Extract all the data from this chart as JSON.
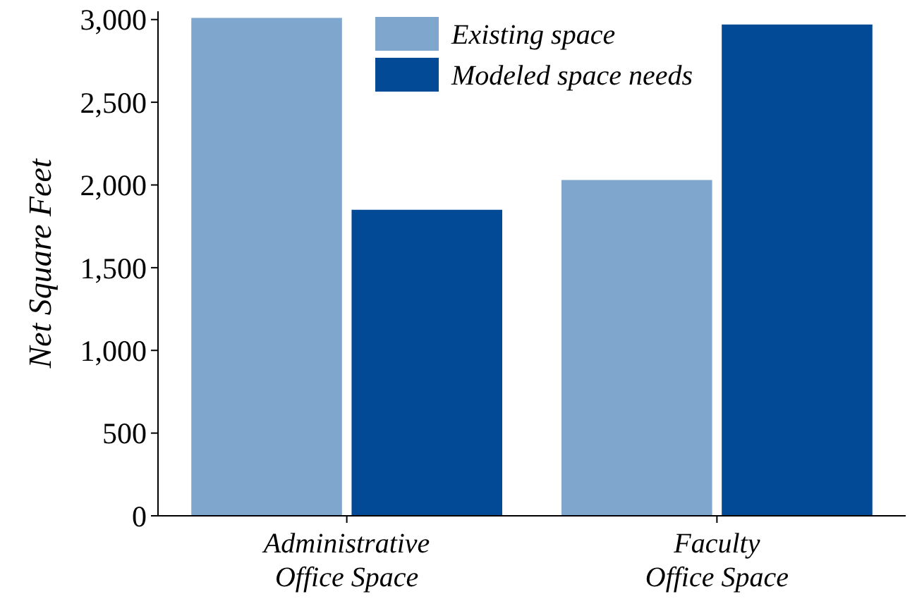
{
  "chart_data": {
    "type": "bar",
    "ylabel": "Net Square Feet",
    "categories": [
      "Administrative\nOffice Space",
      "Faculty\nOffice Space"
    ],
    "series": [
      {
        "name": "Existing space",
        "color": "#7fa6cc",
        "values": [
          3010,
          2030
        ]
      },
      {
        "name": "Modeled space needs",
        "color": "#024a96",
        "values": [
          1850,
          2970
        ]
      }
    ],
    "ylim": [
      0,
      3050
    ],
    "yticks": [
      {
        "value": 0,
        "label": "0"
      },
      {
        "value": 500,
        "label": "500"
      },
      {
        "value": 1000,
        "label": "1,000"
      },
      {
        "value": 1500,
        "label": "1,500"
      },
      {
        "value": 2000,
        "label": "2,000"
      },
      {
        "value": 2500,
        "label": "2,500"
      },
      {
        "value": 3000,
        "label": "3,000"
      }
    ],
    "grid": false,
    "legend": "top"
  }
}
